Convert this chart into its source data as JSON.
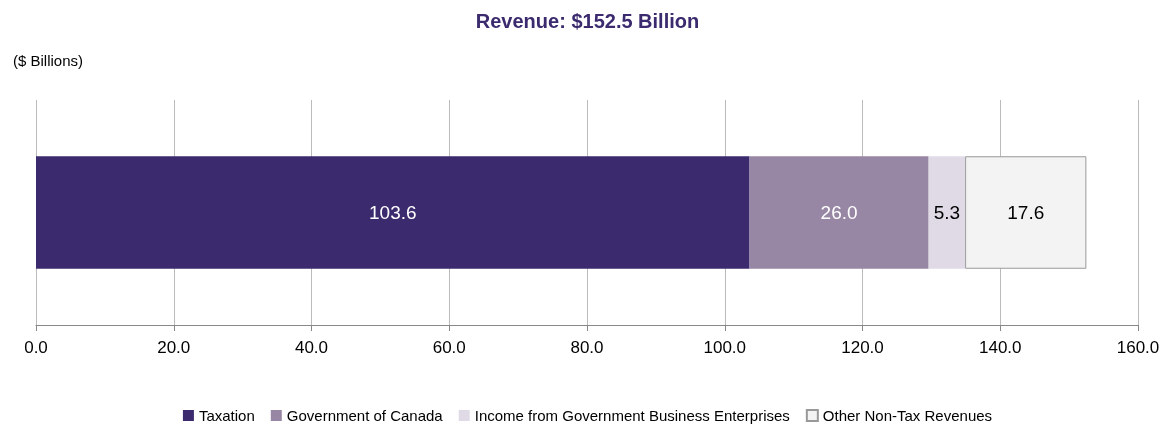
{
  "chart_data": {
    "type": "bar",
    "orientation": "horizontal",
    "stacked": true,
    "title": "Revenue: $152.5 Billion",
    "ylabel": "($ Billions)",
    "categories": [
      null
    ],
    "series": [
      {
        "name": "Taxation",
        "color": "#3b2a6e",
        "values": [
          103.6
        ],
        "value_labels": [
          "103.6"
        ]
      },
      {
        "name": "Government of Canada",
        "color": "#9787a5",
        "values": [
          26.0
        ],
        "value_labels": [
          "26.0"
        ]
      },
      {
        "name": "Income from Government Business Enterprises",
        "color": "#e0dae6",
        "values": [
          5.3
        ],
        "value_labels": [
          "5.3"
        ]
      },
      {
        "name": "Other Non-Tax Revenues",
        "color": "#f3f3f3",
        "values": [
          17.6
        ],
        "value_labels": [
          "17.6"
        ]
      }
    ],
    "xlim": [
      0,
      160
    ],
    "xticks": [
      {
        "value": 0,
        "label": "0.0"
      },
      {
        "value": 20,
        "label": "20.0"
      },
      {
        "value": 40,
        "label": "40.0"
      },
      {
        "value": 60,
        "label": "60.0"
      },
      {
        "value": 80,
        "label": "80.0"
      },
      {
        "value": 100,
        "label": "100.0"
      },
      {
        "value": 120,
        "label": "120.0"
      },
      {
        "value": 140,
        "label": "140.0"
      },
      {
        "value": 160,
        "label": "160.0"
      }
    ],
    "grid": "x",
    "legend": "bottom"
  }
}
